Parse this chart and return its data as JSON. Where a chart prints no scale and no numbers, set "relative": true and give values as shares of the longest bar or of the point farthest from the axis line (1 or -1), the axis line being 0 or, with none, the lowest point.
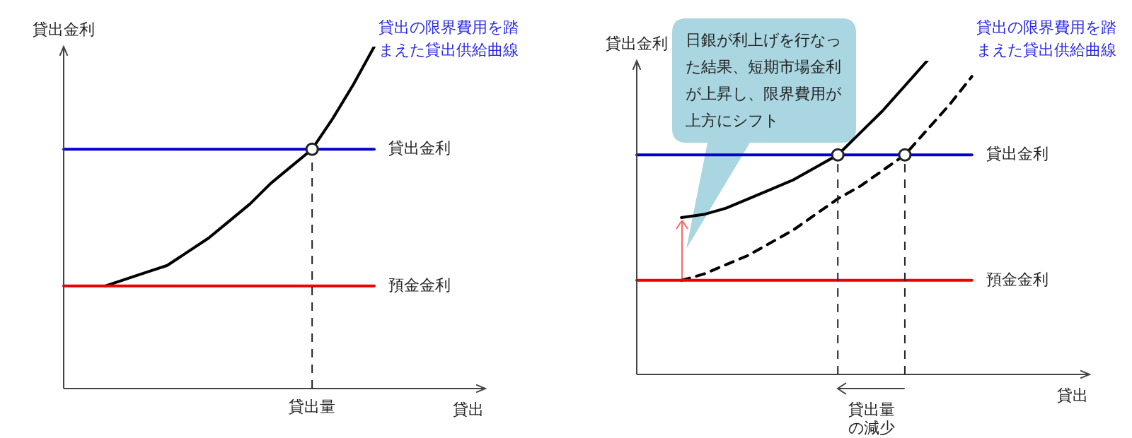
{
  "chart_data": [
    {
      "type": "line",
      "relative": true,
      "title": "貸出の限界費用を踏まえた貸出供給曲線",
      "ylabel": "貸出金利",
      "xlabel": "貸出",
      "categories": [
        null,
        null,
        null,
        null,
        null,
        null,
        null,
        null,
        null,
        null,
        null,
        null,
        null,
        null,
        null,
        null,
        null,
        null,
        null,
        null
      ],
      "series": [
        {
          "name": "貸出金利",
          "color": "#0000cc",
          "values": [
            0.7,
            0.7,
            0.7,
            0.7,
            0.7,
            0.7,
            0.7,
            0.7,
            0.7,
            0.7,
            0.7,
            0.7,
            0.7,
            0.7,
            0.7,
            0.7,
            null,
            null,
            null,
            null
          ]
        },
        {
          "name": "預金金利",
          "color": "#ee0000",
          "values": [
            0.3,
            0.3,
            0.3,
            0.3,
            0.3,
            0.3,
            0.3,
            0.3,
            0.3,
            0.3,
            0.3,
            0.3,
            0.3,
            0.3,
            0.3,
            0.3,
            null,
            null,
            null,
            null
          ]
        },
        {
          "color": "#000000",
          "values": [
            null,
            null,
            0.3,
            0.32,
            0.34,
            0.36,
            0.4,
            0.44,
            0.49,
            0.54,
            0.6,
            0.65,
            0.7,
            0.79,
            0.89,
            1.0,
            null,
            null,
            null,
            null
          ]
        }
      ],
      "annotations": [
        "貸出量"
      ]
    },
    {
      "type": "line",
      "relative": true,
      "title": "貸出の限界費用を踏まえた貸出供給曲線",
      "ylabel": "貸出金利",
      "xlabel": "貸出",
      "categories": [
        null,
        null,
        null,
        null,
        null,
        null,
        null,
        null,
        null,
        null,
        null,
        null,
        null,
        null,
        null,
        null,
        null,
        null,
        null,
        null
      ],
      "series": [
        {
          "name": "貸出金利",
          "color": "#0000cc",
          "values": [
            0.7,
            0.7,
            0.7,
            0.7,
            0.7,
            0.7,
            0.7,
            0.7,
            0.7,
            0.7,
            0.7,
            0.7,
            0.7,
            0.7,
            0.7,
            0.7,
            null,
            null,
            null,
            null
          ]
        },
        {
          "name": "預金金利",
          "color": "#ee0000",
          "values": [
            0.3,
            0.3,
            0.3,
            0.3,
            0.3,
            0.3,
            0.3,
            0.3,
            0.3,
            0.3,
            0.3,
            0.3,
            0.3,
            0.3,
            0.3,
            0.3,
            null,
            null,
            null,
            null
          ]
        },
        {
          "color": "#000000",
          "values": [
            null,
            null,
            0.5,
            0.51,
            0.53,
            0.56,
            0.59,
            0.62,
            0.66,
            0.7,
            0.77,
            0.84,
            0.92,
            1.0,
            null,
            null,
            null,
            null,
            null,
            null
          ]
        },
        {
          "color": "#000000",
          "line_style": "dashed",
          "values": [
            null,
            null,
            0.3,
            0.32,
            0.35,
            0.38,
            0.42,
            0.46,
            0.51,
            0.56,
            0.6,
            0.65,
            0.7,
            0.78,
            0.86,
            0.95,
            null,
            null,
            null,
            null
          ]
        }
      ],
      "annotations": [
        "日銀が利上げを行なった結果、短期市場金利が上昇し、限界費用が上方にシフト",
        "貸出量の減少"
      ]
    }
  ]
}
